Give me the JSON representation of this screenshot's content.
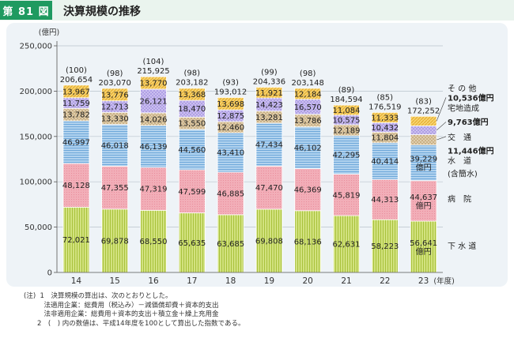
{
  "header": {
    "figure_no": "第 81 図",
    "title": "決算規模の推移"
  },
  "chart_data": {
    "type": "bar",
    "stacked": true,
    "ylabel": "(億円)",
    "ylim": [
      0,
      250000
    ],
    "yticks": [
      0,
      50000,
      100000,
      150000,
      200000,
      250000
    ],
    "ytick_labels": [
      "0",
      "50,000",
      "100,000",
      "150,000",
      "200,000",
      "250,000"
    ],
    "categories": [
      "14",
      "15",
      "16",
      "17",
      "18",
      "19",
      "20",
      "21",
      "22",
      "23"
    ],
    "x_unit": "(年度)",
    "series": [
      {
        "name": "下水道",
        "color": "#cfe07a",
        "values": [
          72021,
          69878,
          68550,
          65635,
          63685,
          69808,
          68136,
          62631,
          58223,
          56641
        ]
      },
      {
        "name": "病院",
        "color": "#f2aeb8",
        "values": [
          48128,
          47355,
          47319,
          47599,
          46885,
          47470,
          46369,
          45819,
          44313,
          44637
        ]
      },
      {
        "name": "水道(含簡水)",
        "color": "#9ec7ea",
        "values": [
          46997,
          46018,
          46139,
          44560,
          43410,
          47434,
          46102,
          42295,
          40414,
          39229
        ]
      },
      {
        "name": "交通",
        "color": "#dcc6a2",
        "values": [
          13782,
          13330,
          14026,
          13550,
          12460,
          13281,
          13786,
          12189,
          11804,
          11446
        ]
      },
      {
        "name": "宅地造成",
        "color": "#c3b7ea",
        "values": [
          11759,
          12713,
          26121,
          18470,
          12875,
          14423,
          16570,
          10575,
          10432,
          9763
        ]
      },
      {
        "name": "その他",
        "color": "#f6cd5c",
        "values": [
          13967,
          13776,
          13770,
          13368,
          13698,
          11921,
          12184,
          11084,
          11333,
          10536
        ]
      }
    ],
    "value_labels": [
      [
        "72,021",
        "69,878",
        "68,550",
        "65,635",
        "63,685",
        "69,808",
        "68,136",
        "62,631",
        "58,223",
        "56,641"
      ],
      [
        "48,128",
        "47,355",
        "47,319",
        "47,599",
        "46,885",
        "47,470",
        "46,369",
        "45,819",
        "44,313",
        "44,637"
      ],
      [
        "46,997",
        "46,018",
        "46,139",
        "44,560",
        "43,410",
        "47,434",
        "46,102",
        "42,295",
        "40,414",
        "39,229"
      ],
      [
        "13,782",
        "13,330",
        "14,026",
        "13,550",
        "12,460",
        "13,281",
        "13,786",
        "12,189",
        "11,804",
        ""
      ],
      [
        "11,759",
        "12,713",
        "26,121",
        "18,470",
        "12,875",
        "14,423",
        "16,570",
        "10,575",
        "10,432",
        ""
      ],
      [
        "13,967",
        "13,776",
        "13,770",
        "13,368",
        "13,698",
        "11,921",
        "12,184",
        "11,084",
        "11,333",
        ""
      ]
    ],
    "last_bar_unit": "億円",
    "totals": [
      206654,
      203070,
      215925,
      203182,
      193012,
      204336,
      203148,
      184594,
      176519,
      172252
    ],
    "total_labels": [
      "206,654",
      "203,070",
      "215,925",
      "203,182",
      "193,012",
      "204,336",
      "203,148",
      "184,594",
      "176,519",
      "172,252"
    ],
    "index_labels": [
      "(100)",
      "(98)",
      "(104)",
      "(98)",
      "(93)",
      "(99)",
      "(98)",
      "(89)",
      "(85)",
      "(83)"
    ],
    "right_legend": {
      "sonota": "そ の 他",
      "sonota_value": "10,536億円",
      "takuchi": "宅地造成",
      "takuchi_value": "9,763億円",
      "kotsu": "交　通",
      "kotsu_value": "11,446億円",
      "suido": "水　道",
      "suido_sub": "(含簡水)",
      "byoin": "病　院",
      "gesuido": "下 水 道"
    }
  },
  "notes": [
    "(注)  1　決算規模の算出は、次のとおりとした。",
    "　　　法適用企業：総費用（税込み）－減価償却費＋資本的支出",
    "　　　法非適用企業：総費用＋資本的支出＋積立金＋繰上充用金",
    "　　2　(　) 内の数値は、平成14年度を100として算出した指数である。"
  ]
}
